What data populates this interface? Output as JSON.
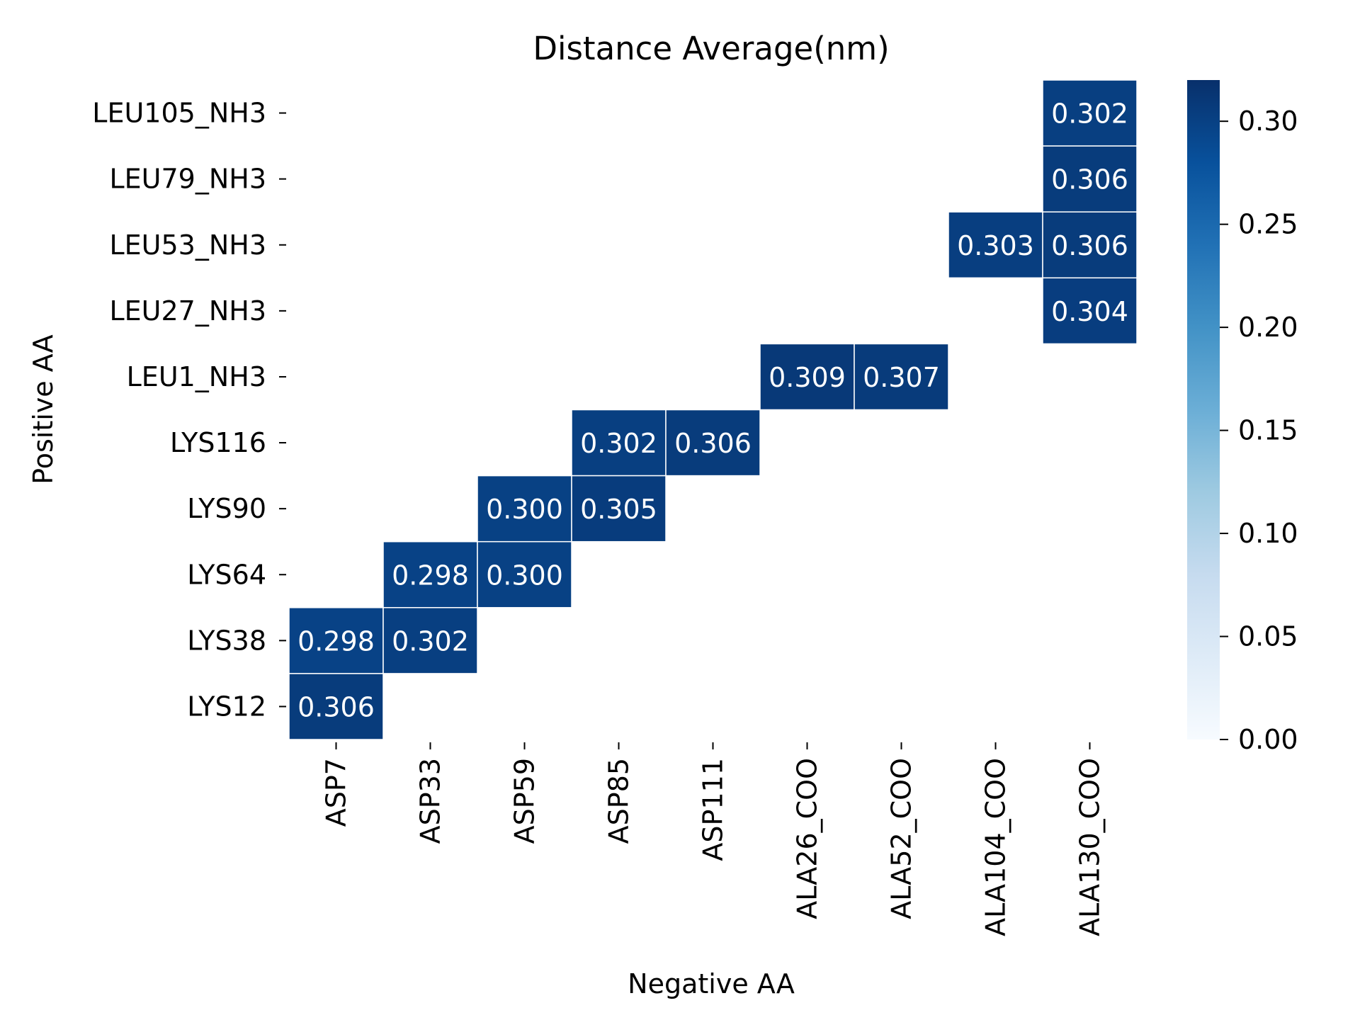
{
  "chart_data": {
    "type": "heatmap",
    "title": "Distance Average(nm)",
    "xlabel": "Negative AA",
    "ylabel": "Positive AA",
    "x_categories": [
      "ASP7",
      "ASP33",
      "ASP59",
      "ASP85",
      "ASP111",
      "ALA26_COO",
      "ALA52_COO",
      "ALA104_COO",
      "ALA130_COO"
    ],
    "y_categories": [
      "LEU105_NH3",
      "LEU79_NH3",
      "LEU53_NH3",
      "LEU27_NH3",
      "LEU1_NH3",
      "LYS116",
      "LYS90",
      "LYS64",
      "LYS38",
      "LYS12"
    ],
    "cells": [
      {
        "x": "ALA130_COO",
        "y": "LEU105_NH3",
        "value": 0.302,
        "label": "0.302"
      },
      {
        "x": "ALA130_COO",
        "y": "LEU79_NH3",
        "value": 0.306,
        "label": "0.306"
      },
      {
        "x": "ALA104_COO",
        "y": "LEU53_NH3",
        "value": 0.303,
        "label": "0.303"
      },
      {
        "x": "ALA130_COO",
        "y": "LEU53_NH3",
        "value": 0.306,
        "label": "0.306"
      },
      {
        "x": "ALA130_COO",
        "y": "LEU27_NH3",
        "value": 0.304,
        "label": "0.304"
      },
      {
        "x": "ALA26_COO",
        "y": "LEU1_NH3",
        "value": 0.309,
        "label": "0.309"
      },
      {
        "x": "ALA52_COO",
        "y": "LEU1_NH3",
        "value": 0.307,
        "label": "0.307"
      },
      {
        "x": "ASP85",
        "y": "LYS116",
        "value": 0.302,
        "label": "0.302"
      },
      {
        "x": "ASP111",
        "y": "LYS116",
        "value": 0.306,
        "label": "0.306"
      },
      {
        "x": "ASP59",
        "y": "LYS90",
        "value": 0.3,
        "label": "0.300"
      },
      {
        "x": "ASP85",
        "y": "LYS90",
        "value": 0.305,
        "label": "0.305"
      },
      {
        "x": "ASP33",
        "y": "LYS64",
        "value": 0.298,
        "label": "0.298"
      },
      {
        "x": "ASP59",
        "y": "LYS64",
        "value": 0.3,
        "label": "0.300"
      },
      {
        "x": "ASP7",
        "y": "LYS38",
        "value": 0.298,
        "label": "0.298"
      },
      {
        "x": "ASP33",
        "y": "LYS38",
        "value": 0.302,
        "label": "0.302"
      },
      {
        "x": "ASP7",
        "y": "LYS12",
        "value": 0.306,
        "label": "0.306"
      }
    ],
    "colorbar": {
      "colormap": "Blues",
      "range": [
        0,
        0.32
      ],
      "ticks": [
        0.0,
        0.05,
        0.1,
        0.15,
        0.2,
        0.25,
        0.3
      ],
      "tick_labels": [
        "0.00",
        "0.05",
        "0.10",
        "0.15",
        "0.20",
        "0.25",
        "0.30"
      ],
      "colors": [
        "#f7fbff",
        "#deebf7",
        "#c6dbef",
        "#9ecae1",
        "#6baed6",
        "#4292c6",
        "#2171b5",
        "#08519c",
        "#08306b"
      ]
    },
    "cell_border_color": "#ffffff",
    "label_color": "#ffffff",
    "legend_position": "right"
  }
}
